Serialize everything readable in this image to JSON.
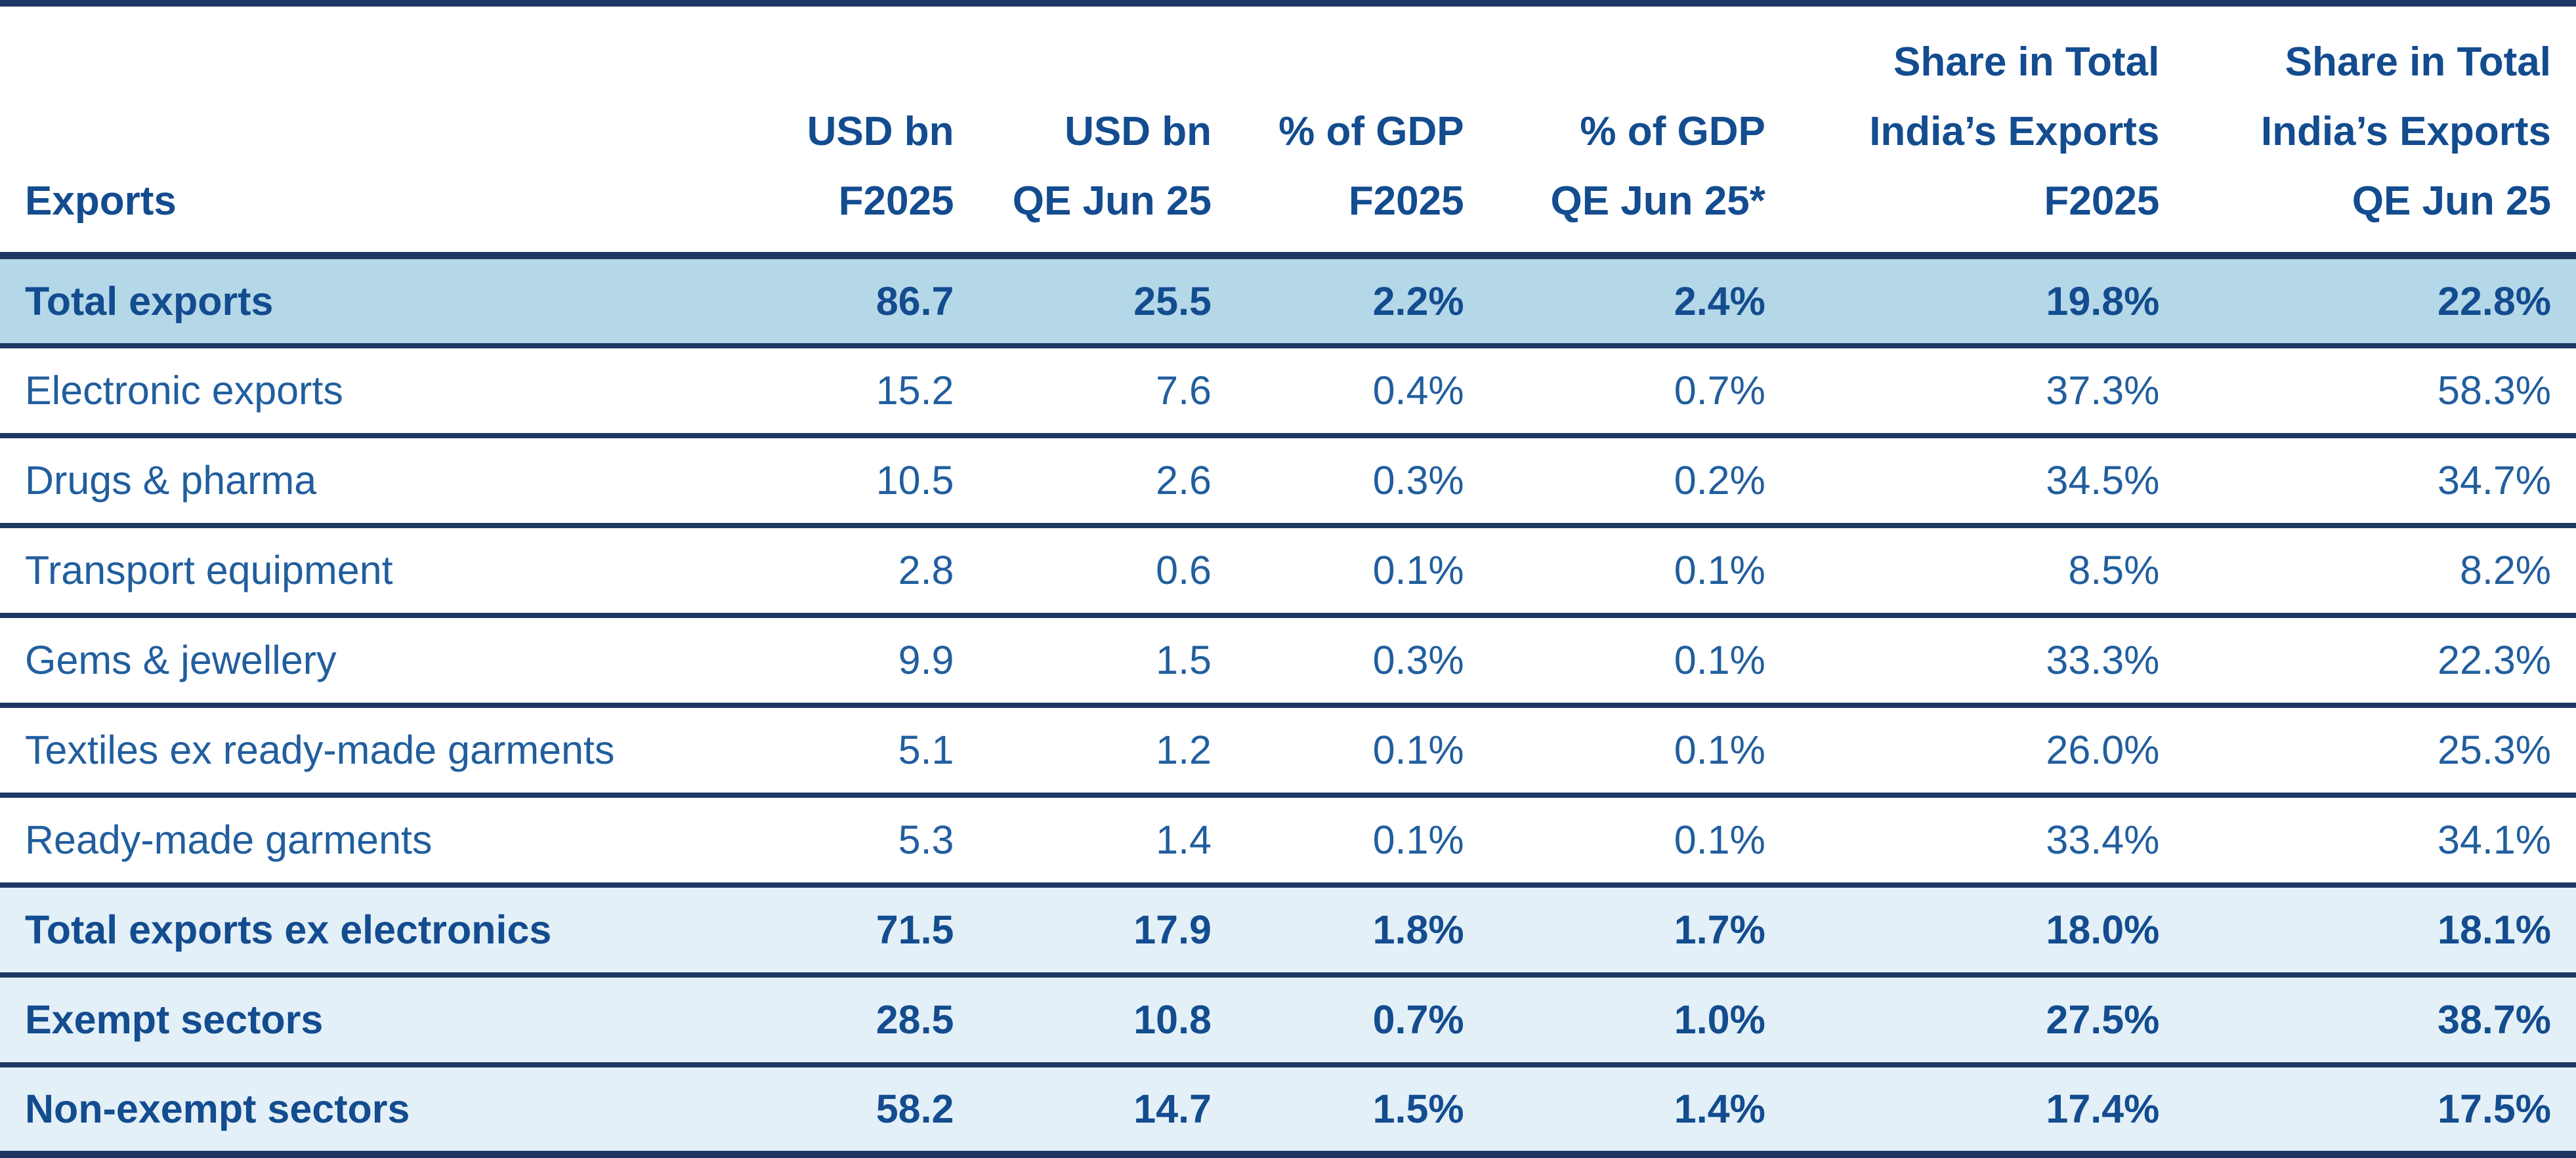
{
  "table": {
    "columns": [
      {
        "id": "exports",
        "lines": [
          "Exports"
        ],
        "align": "left"
      },
      {
        "id": "usd_bn_f2025",
        "lines": [
          "USD bn",
          "F2025"
        ],
        "align": "right"
      },
      {
        "id": "usd_bn_qe_jun25",
        "lines": [
          "USD bn",
          "QE Jun 25"
        ],
        "align": "right"
      },
      {
        "id": "pct_gdp_f2025",
        "lines": [
          "% of GDP",
          "F2025"
        ],
        "align": "right"
      },
      {
        "id": "pct_gdp_qe_jun25",
        "lines": [
          "% of GDP",
          "QE Jun 25*"
        ],
        "align": "right"
      },
      {
        "id": "share_f2025",
        "lines": [
          "Share in Total",
          "India’s Exports",
          "F2025"
        ],
        "align": "right"
      },
      {
        "id": "share_qe_jun25",
        "lines": [
          "Share in Total",
          "India’s Exports",
          "QE Jun 25"
        ],
        "align": "right"
      }
    ],
    "rows": [
      {
        "label": "Total exports",
        "values": [
          "86.7",
          "25.5",
          "2.2%",
          "2.4%",
          "19.8%",
          "22.8%"
        ],
        "style": "highlight",
        "bold": true
      },
      {
        "label": "Electronic exports",
        "values": [
          "15.2",
          "7.6",
          "0.4%",
          "0.7%",
          "37.3%",
          "58.3%"
        ],
        "style": "plain",
        "bold": false
      },
      {
        "label": "Drugs & pharma",
        "values": [
          "10.5",
          "2.6",
          "0.3%",
          "0.2%",
          "34.5%",
          "34.7%"
        ],
        "style": "plain",
        "bold": false
      },
      {
        "label": "Transport equipment",
        "values": [
          "2.8",
          "0.6",
          "0.1%",
          "0.1%",
          "8.5%",
          "8.2%"
        ],
        "style": "plain",
        "bold": false
      },
      {
        "label": "Gems & jewellery",
        "values": [
          "9.9",
          "1.5",
          "0.3%",
          "0.1%",
          "33.3%",
          "22.3%"
        ],
        "style": "plain",
        "bold": false
      },
      {
        "label": "Textiles ex ready-made garments",
        "values": [
          "5.1",
          "1.2",
          "0.1%",
          "0.1%",
          "26.0%",
          "25.3%"
        ],
        "style": "plain",
        "bold": false
      },
      {
        "label": "Ready-made garments",
        "values": [
          "5.3",
          "1.4",
          "0.1%",
          "0.1%",
          "33.4%",
          "34.1%"
        ],
        "style": "plain",
        "bold": false
      },
      {
        "label": "Total exports ex electronics",
        "values": [
          "71.5",
          "17.9",
          "1.8%",
          "1.7%",
          "18.0%",
          "18.1%"
        ],
        "style": "subtle",
        "bold": true
      },
      {
        "label": "Exempt sectors",
        "values": [
          "28.5",
          "10.8",
          "0.7%",
          "1.0%",
          "27.5%",
          "38.7%"
        ],
        "style": "subtle",
        "bold": true
      },
      {
        "label": "Non-exempt sectors",
        "values": [
          "58.2",
          "14.7",
          "1.5%",
          "1.4%",
          "17.4%",
          "17.5%"
        ],
        "style": "subtle",
        "bold": true
      }
    ]
  },
  "colors": {
    "border_navy": "#1f3863",
    "text_bold_blue": "#134c8f",
    "text_regular_blue": "#215e9e",
    "row_highlight_bg": "#b5d8e8",
    "row_subtle_bg": "#e3f0f7",
    "row_plain_bg": "#ffffff"
  },
  "chart_data": {
    "type": "table",
    "title": "",
    "columns": [
      "Exports",
      "USD bn F2025",
      "USD bn QE Jun 25",
      "% of GDP F2025",
      "% of GDP QE Jun 25*",
      "Share in Total India’s Exports F2025",
      "Share in Total India’s Exports QE Jun 25"
    ],
    "rows": [
      [
        "Total exports",
        86.7,
        25.5,
        "2.2%",
        "2.4%",
        "19.8%",
        "22.8%"
      ],
      [
        "Electronic exports",
        15.2,
        7.6,
        "0.4%",
        "0.7%",
        "37.3%",
        "58.3%"
      ],
      [
        "Drugs & pharma",
        10.5,
        2.6,
        "0.3%",
        "0.2%",
        "34.5%",
        "34.7%"
      ],
      [
        "Transport equipment",
        2.8,
        0.6,
        "0.1%",
        "0.1%",
        "8.5%",
        "8.2%"
      ],
      [
        "Gems & jewellery",
        9.9,
        1.5,
        "0.3%",
        "0.1%",
        "33.3%",
        "22.3%"
      ],
      [
        "Textiles ex ready-made garments",
        5.1,
        1.2,
        "0.1%",
        "0.1%",
        "26.0%",
        "25.3%"
      ],
      [
        "Ready-made garments",
        5.3,
        1.4,
        "0.1%",
        "0.1%",
        "33.4%",
        "34.1%"
      ],
      [
        "Total exports ex electronics",
        71.5,
        17.9,
        "1.8%",
        "1.7%",
        "18.0%",
        "18.1%"
      ],
      [
        "Exempt sectors",
        28.5,
        10.8,
        "0.7%",
        "1.0%",
        "27.5%",
        "38.7%"
      ],
      [
        "Non-exempt sectors",
        58.2,
        14.7,
        "1.5%",
        "1.4%",
        "17.4%",
        "17.5%"
      ]
    ]
  }
}
